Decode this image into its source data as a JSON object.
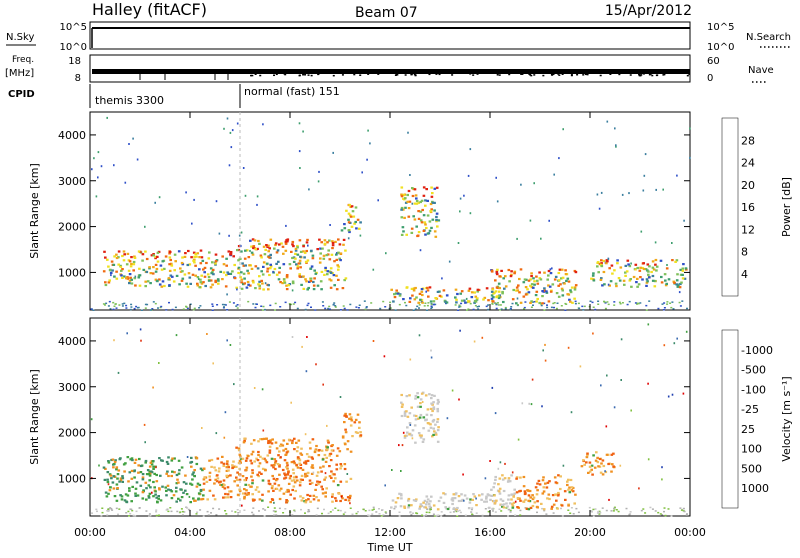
{
  "header": {
    "station": "Halley (fitACF)",
    "beam": "Beam 07",
    "date": "15/Apr/2012"
  },
  "strips": {
    "nsky_label": "N.Sky",
    "nsearch_label": "N.Search",
    "nsky_ticks": [
      "10^5",
      "10^0"
    ],
    "nsearch_ticks": [
      "10^5",
      "10^0"
    ],
    "freq_label": "Freq.",
    "freq_unit": "[MHz]",
    "freq_ticks": [
      "18",
      "8"
    ],
    "nave_label": "Nave",
    "nave_ticks": [
      "60",
      "0"
    ],
    "cpid_label": "CPID",
    "cpid_modes": [
      {
        "name": "themis 3300",
        "start_h": 0
      },
      {
        "name": "normal (fast) 151",
        "start_h": 6
      }
    ]
  },
  "chart_data": [
    {
      "type": "heatmap",
      "name": "power",
      "ylabel": "Slant Range [km]",
      "xlabel": "Time UT",
      "xlim": [
        0,
        24
      ],
      "ylim": [
        180,
        4500
      ],
      "yticks": [
        "1000",
        "2000",
        "3000",
        "4000"
      ],
      "xticks": [
        "00:00",
        "04:00",
        "08:00",
        "12:00",
        "16:00",
        "20:00",
        "00:00"
      ],
      "colorbar": {
        "label": "Power [dB]",
        "ticks": [
          "4",
          "8",
          "12",
          "16",
          "20",
          "24",
          "28"
        ],
        "colors": [
          "#1a1aff",
          "#2e4fc8",
          "#3a7e9e",
          "#3e9e6e",
          "#7ec05a",
          "#f0e020",
          "#f0a818",
          "#f06a10",
          "#e02010"
        ]
      },
      "echo_regions": [
        {
          "t0": 0.5,
          "t1": 5.8,
          "r0": 700,
          "r1": 1500
        },
        {
          "t0": 5.8,
          "t1": 10.2,
          "r0": 650,
          "r1": 1750
        },
        {
          "t0": 10.0,
          "t1": 10.8,
          "r0": 1900,
          "r1": 2500
        },
        {
          "t0": 12.4,
          "t1": 13.9,
          "r0": 1800,
          "r1": 2900
        },
        {
          "t0": 12.0,
          "t1": 16.5,
          "r0": 350,
          "r1": 700
        },
        {
          "t0": 16.0,
          "t1": 19.4,
          "r0": 350,
          "r1": 1100
        },
        {
          "t0": 20.0,
          "t1": 23.8,
          "r0": 700,
          "r1": 1300
        }
      ]
    },
    {
      "type": "heatmap",
      "name": "velocity",
      "ylabel": "Slant Range [km]",
      "xlabel": "Time UT",
      "xlim": [
        0,
        24
      ],
      "ylim": [
        180,
        4500
      ],
      "yticks": [
        "1000",
        "2000",
        "3000",
        "4000"
      ],
      "xticks": [
        "00:00",
        "04:00",
        "08:00",
        "12:00",
        "16:00",
        "20:00",
        "00:00"
      ],
      "colorbar": {
        "label": "Velocity [m s⁻¹]",
        "ticks": [
          "1000",
          "500",
          "100",
          "25",
          "-25",
          "-100",
          "-500",
          "-1000"
        ],
        "colors": [
          "#2040b0",
          "#3a6ab0",
          "#3c8a6a",
          "#40a040",
          "#80c040",
          "#c8c8c8",
          "#f0c060",
          "#f09020",
          "#f06010",
          "#e03010",
          "#e00000"
        ]
      },
      "echo_regions": [
        {
          "t0": 0.5,
          "t1": 5.8,
          "r0": 500,
          "r1": 1500
        },
        {
          "t0": 5.8,
          "t1": 10.4,
          "r0": 500,
          "r1": 1900
        },
        {
          "t0": 10.0,
          "t1": 10.8,
          "r0": 1900,
          "r1": 2500
        },
        {
          "t0": 12.4,
          "t1": 13.9,
          "r0": 1800,
          "r1": 2900
        },
        {
          "t0": 12.0,
          "t1": 16.5,
          "r0": 350,
          "r1": 700
        },
        {
          "t0": 16.0,
          "t1": 19.4,
          "r0": 350,
          "r1": 1100
        },
        {
          "t0": 19.5,
          "t1": 21.0,
          "r0": 1100,
          "r1": 1600
        }
      ]
    }
  ]
}
